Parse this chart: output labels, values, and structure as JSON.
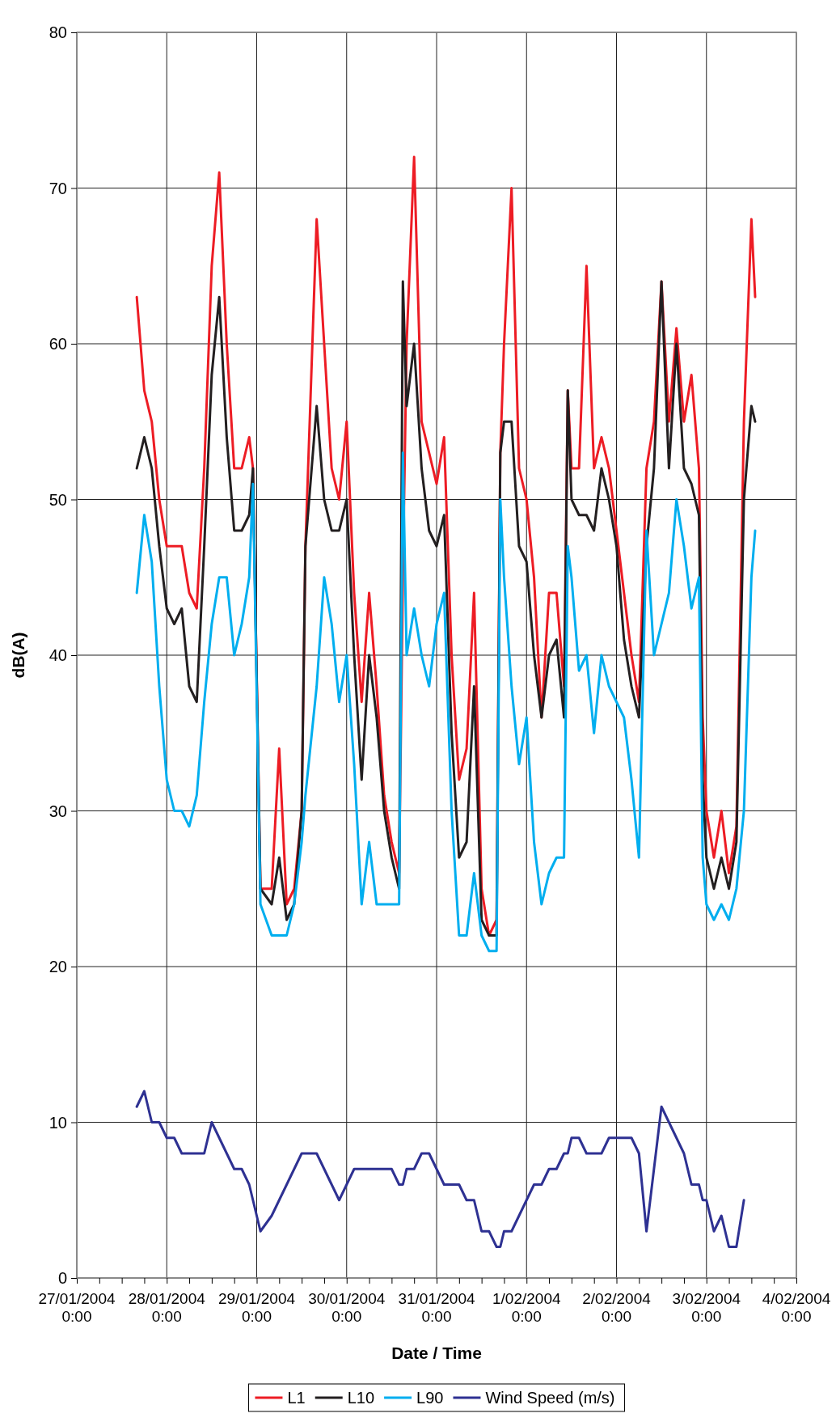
{
  "chart_data": {
    "type": "line",
    "xlabel": "Date / Time",
    "ylabel": "dB(A)",
    "x": [
      "2004-01-27T16:00",
      "2004-01-27T18:00",
      "2004-01-27T20:00",
      "2004-01-27T22:00",
      "2004-01-28T00:00",
      "2004-01-28T02:00",
      "2004-01-28T04:00",
      "2004-01-28T06:00",
      "2004-01-28T08:00",
      "2004-01-28T10:00",
      "2004-01-28T12:00",
      "2004-01-28T14:00",
      "2004-01-28T16:00",
      "2004-01-28T18:00",
      "2004-01-28T20:00",
      "2004-01-28T22:00",
      "2004-01-28T23:00",
      "2004-01-29T01:00",
      "2004-01-29T04:00",
      "2004-01-29T06:00",
      "2004-01-29T08:00",
      "2004-01-29T10:00",
      "2004-01-29T12:00",
      "2004-01-29T13:00",
      "2004-01-29T16:00",
      "2004-01-29T18:00",
      "2004-01-29T20:00",
      "2004-01-29T22:00",
      "2004-01-30T00:00",
      "2004-01-30T02:00",
      "2004-01-30T04:00",
      "2004-01-30T06:00",
      "2004-01-30T08:00",
      "2004-01-30T10:00",
      "2004-01-30T12:00",
      "2004-01-30T14:00",
      "2004-01-30T15:00",
      "2004-01-30T16:00",
      "2004-01-30T18:00",
      "2004-01-30T20:00",
      "2004-01-30T22:00",
      "2004-01-31T00:00",
      "2004-01-31T02:00",
      "2004-01-31T04:00",
      "2004-01-31T06:00",
      "2004-01-31T08:00",
      "2004-01-31T10:00",
      "2004-01-31T12:00",
      "2004-01-31T14:00",
      "2004-01-31T16:00",
      "2004-01-31T17:00",
      "2004-01-31T18:00",
      "2004-01-31T20:00",
      "2004-01-31T22:00",
      "2004-02-01T00:00",
      "2004-02-01T02:00",
      "2004-02-01T04:00",
      "2004-02-01T06:00",
      "2004-02-01T08:00",
      "2004-02-01T10:00",
      "2004-02-01T11:00",
      "2004-02-01T12:00",
      "2004-02-01T14:00",
      "2004-02-01T16:00",
      "2004-02-01T18:00",
      "2004-02-01T20:00",
      "2004-02-01T22:00",
      "2004-02-02T00:00",
      "2004-02-02T02:00",
      "2004-02-02T04:00",
      "2004-02-02T06:00",
      "2004-02-02T08:00",
      "2004-02-02T10:00",
      "2004-02-02T12:00",
      "2004-02-02T14:00",
      "2004-02-02T16:00",
      "2004-02-02T18:00",
      "2004-02-02T20:00",
      "2004-02-02T22:00",
      "2004-02-02T23:00",
      "2004-02-03T00:00",
      "2004-02-03T02:00",
      "2004-02-03T04:00",
      "2004-02-03T06:00",
      "2004-02-03T08:00",
      "2004-02-03T10:00",
      "2004-02-03T12:00",
      "2004-02-03T13:00"
    ],
    "series": [
      {
        "name": "L1",
        "color": "#ed1c24",
        "values": [
          63,
          57,
          55,
          50,
          47,
          47,
          47,
          44,
          43,
          52,
          65,
          71,
          60,
          52,
          52,
          54,
          52,
          25,
          25,
          34,
          24,
          25,
          30,
          47,
          68,
          60,
          52,
          50,
          55,
          44,
          37,
          44,
          38,
          31,
          28,
          26,
          45,
          60,
          72,
          55,
          53,
          51,
          54,
          40,
          32,
          34,
          44,
          25,
          22,
          23,
          53,
          60,
          70,
          52,
          50,
          45,
          36,
          44,
          44,
          38,
          57,
          52,
          52,
          65,
          52,
          54,
          52,
          48,
          44,
          40,
          37,
          52,
          55,
          64,
          55,
          61,
          55,
          58,
          52,
          36,
          30,
          27,
          30,
          26,
          29,
          55,
          68,
          63
        ]
      },
      {
        "name": "L10",
        "color": "#231f20",
        "values": [
          52,
          54,
          52,
          47,
          43,
          42,
          43,
          38,
          37,
          47,
          58,
          63,
          54,
          48,
          48,
          49,
          52,
          25,
          24,
          27,
          23,
          24,
          30,
          47,
          56,
          50,
          48,
          48,
          50,
          40,
          32,
          40,
          36,
          30,
          27,
          25,
          64,
          56,
          60,
          52,
          48,
          47,
          49,
          35,
          27,
          28,
          38,
          23,
          22,
          22,
          53,
          55,
          55,
          47,
          46,
          40,
          36,
          40,
          41,
          36,
          57,
          50,
          49,
          49,
          48,
          52,
          50,
          47,
          41,
          38,
          36,
          47,
          52,
          64,
          52,
          60,
          52,
          51,
          49,
          32,
          27,
          25,
          27,
          25,
          28,
          50,
          56,
          55
        ]
      },
      {
        "name": "L90",
        "color": "#00aeef",
        "values": [
          44,
          49,
          46,
          38,
          32,
          30,
          30,
          29,
          31,
          37,
          42,
          45,
          45,
          40,
          42,
          45,
          51,
          24,
          22,
          22,
          22,
          24,
          28,
          31,
          38,
          45,
          42,
          37,
          40,
          33,
          24,
          28,
          24,
          24,
          24,
          24,
          53,
          40,
          43,
          40,
          38,
          42,
          44,
          30,
          22,
          22,
          26,
          22,
          21,
          21,
          50,
          45,
          38,
          33,
          36,
          28,
          24,
          26,
          27,
          27,
          47,
          45,
          39,
          40,
          35,
          40,
          38,
          37,
          36,
          32,
          27,
          48,
          40,
          42,
          44,
          50,
          47,
          43,
          45,
          27,
          24,
          23,
          24,
          23,
          25,
          30,
          45,
          48
        ]
      },
      {
        "name": "Wind Speed (m/s)",
        "color": "#2e3192",
        "values": [
          11,
          12,
          10,
          10,
          9,
          9,
          8,
          8,
          8,
          8,
          10,
          9,
          8,
          7,
          7,
          6,
          5,
          3,
          4,
          5,
          6,
          7,
          8,
          8,
          8,
          7,
          6,
          5,
          6,
          7,
          7,
          7,
          7,
          7,
          7,
          6,
          6,
          7,
          7,
          8,
          8,
          7,
          6,
          6,
          6,
          5,
          5,
          3,
          3,
          2,
          2,
          3,
          3,
          4,
          5,
          6,
          6,
          7,
          7,
          8,
          8,
          9,
          9,
          8,
          8,
          8,
          9,
          9,
          9,
          9,
          8,
          3,
          7,
          11,
          10,
          9,
          8,
          6,
          6,
          5,
          5,
          3,
          4,
          2,
          2,
          5,
          null,
          null
        ]
      }
    ],
    "xlim": [
      "2004-01-27T00:00",
      "2004-02-04T00:00"
    ],
    "xticks": [
      {
        "value": "2004-01-27T00:00",
        "label": "27/01/2004 0:00"
      },
      {
        "value": "2004-01-27T06:00",
        "label": null
      },
      {
        "value": "2004-01-27T12:00",
        "label": null
      },
      {
        "value": "2004-01-27T18:00",
        "label": null
      },
      {
        "value": "2004-01-28T00:00",
        "label": "28/01/2004 0:00"
      },
      {
        "value": "2004-01-28T06:00",
        "label": null
      },
      {
        "value": "2004-01-28T12:00",
        "label": null
      },
      {
        "value": "2004-01-28T18:00",
        "label": null
      },
      {
        "value": "2004-01-29T00:00",
        "label": "29/01/2004 0:00"
      },
      {
        "value": "2004-01-29T06:00",
        "label": null
      },
      {
        "value": "2004-01-29T12:00",
        "label": null
      },
      {
        "value": "2004-01-29T18:00",
        "label": null
      },
      {
        "value": "2004-01-30T00:00",
        "label": "30/01/2004 0:00"
      },
      {
        "value": "2004-01-30T06:00",
        "label": null
      },
      {
        "value": "2004-01-30T12:00",
        "label": null
      },
      {
        "value": "2004-01-30T18:00",
        "label": null
      },
      {
        "value": "2004-01-31T00:00",
        "label": "31/01/2004 0:00"
      },
      {
        "value": "2004-01-31T06:00",
        "label": null
      },
      {
        "value": "2004-01-31T12:00",
        "label": null
      },
      {
        "value": "2004-01-31T18:00",
        "label": null
      },
      {
        "value": "2004-02-01T00:00",
        "label": "1/02/2004 0:00"
      },
      {
        "value": "2004-02-01T06:00",
        "label": null
      },
      {
        "value": "2004-02-01T12:00",
        "label": null
      },
      {
        "value": "2004-02-01T18:00",
        "label": null
      },
      {
        "value": "2004-02-02T00:00",
        "label": "2/02/2004 0:00"
      },
      {
        "value": "2004-02-02T06:00",
        "label": null
      },
      {
        "value": "2004-02-02T12:00",
        "label": null
      },
      {
        "value": "2004-02-02T18:00",
        "label": null
      },
      {
        "value": "2004-02-03T00:00",
        "label": "3/02/2004 0:00"
      },
      {
        "value": "2004-02-03T06:00",
        "label": null
      },
      {
        "value": "2004-02-03T12:00",
        "label": null
      },
      {
        "value": "2004-02-03T18:00",
        "label": null
      },
      {
        "value": "2004-02-04T00:00",
        "label": "4/02/2004 0:00"
      }
    ],
    "ylim": [
      0,
      80
    ],
    "yticks": [
      0,
      10,
      20,
      30,
      40,
      50,
      60,
      70,
      80
    ],
    "grid": true,
    "legend": "bottom",
    "marker": "none",
    "line_style": "solid"
  }
}
